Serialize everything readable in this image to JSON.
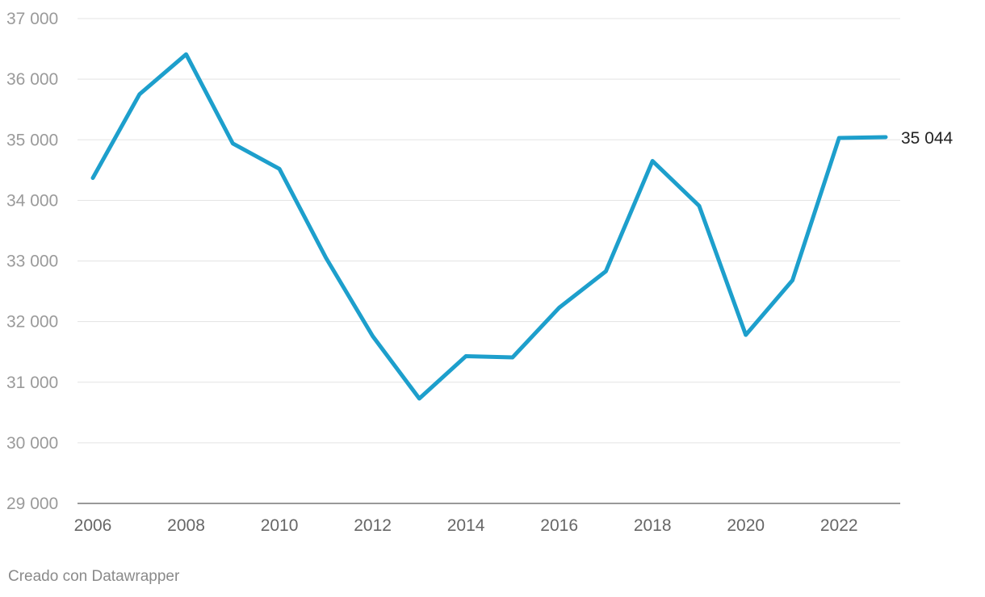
{
  "chart_data": {
    "type": "line",
    "title": "",
    "xlabel": "",
    "ylabel": "",
    "x": [
      2006,
      2007,
      2008,
      2009,
      2010,
      2011,
      2012,
      2013,
      2014,
      2015,
      2016,
      2017,
      2018,
      2019,
      2020,
      2021,
      2022,
      2023
    ],
    "series": [
      {
        "values": [
          34370,
          35750,
          36410,
          34940,
          34520,
          33050,
          31760,
          30730,
          31430,
          31410,
          32230,
          32830,
          34650,
          33910,
          31780,
          32680,
          35030,
          35044
        ],
        "color": "#1d9fcc"
      }
    ],
    "ylim": [
      29000,
      37000
    ],
    "xlim": [
      2006,
      2023
    ],
    "y_ticks": [
      29000,
      30000,
      31000,
      32000,
      33000,
      34000,
      35000,
      36000,
      37000
    ],
    "y_tick_labels": [
      "29 000",
      "30 000",
      "31 000",
      "32 000",
      "33 000",
      "34 000",
      "35 000",
      "36 000",
      "37 000"
    ],
    "x_ticks": [
      2006,
      2008,
      2010,
      2012,
      2014,
      2016,
      2018,
      2020,
      2022
    ],
    "x_tick_labels": [
      "2006",
      "2008",
      "2010",
      "2012",
      "2014",
      "2016",
      "2018",
      "2020",
      "2022"
    ],
    "end_label": "35 044",
    "grid": true,
    "legend": "none"
  },
  "footer": {
    "credit": "Creado con Datawrapper"
  }
}
